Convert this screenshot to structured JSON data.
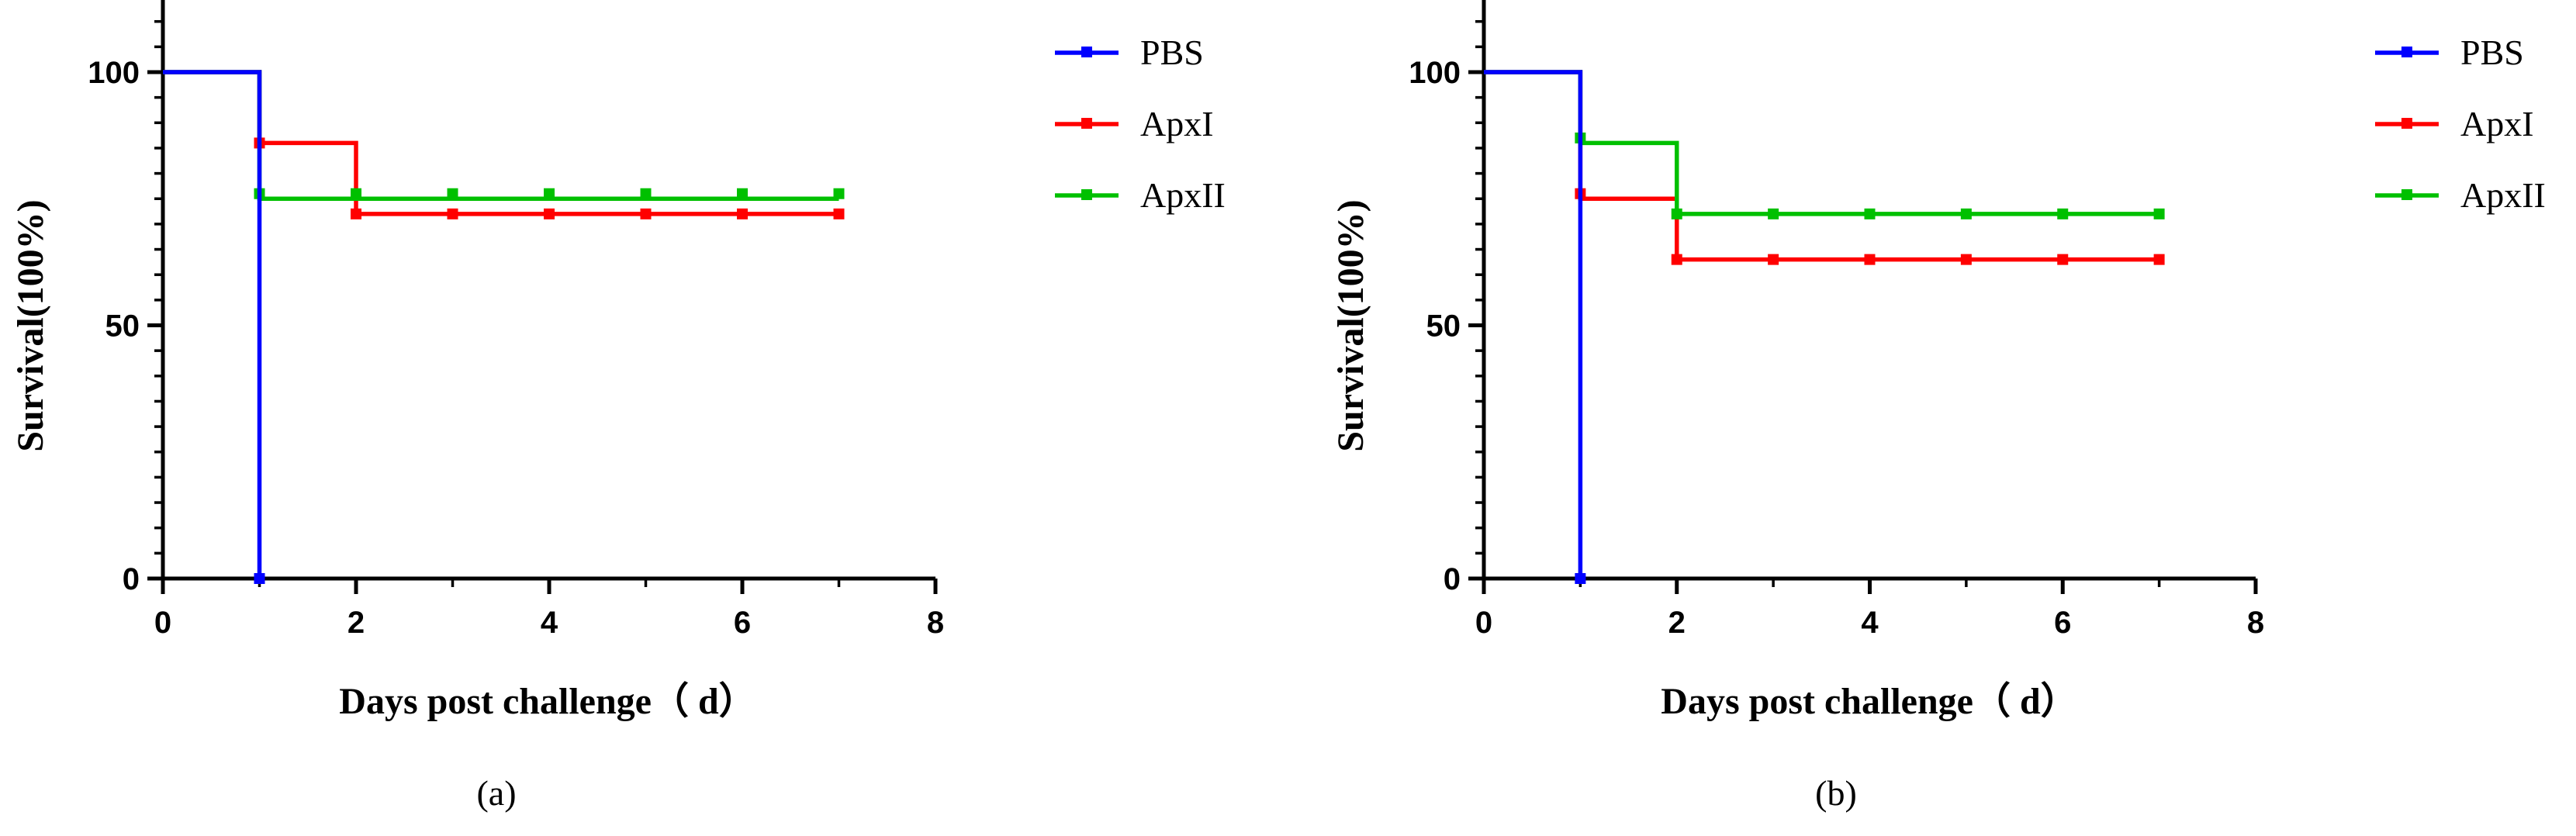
{
  "figure": {
    "panel_labels": [
      "(a)",
      "(b)"
    ]
  },
  "chart_data": [
    {
      "type": "line",
      "subtype": "kaplan-meier survival step",
      "panel": "(a)",
      "title": "",
      "xlabel": "Days post challenge（ d）",
      "ylabel": "Survival(100%)",
      "xlim": [
        0,
        8
      ],
      "ylim": [
        0,
        110
      ],
      "xticks": [
        "0",
        "2",
        "4",
        "6",
        "8"
      ],
      "yticks": [
        "0",
        "50",
        "100"
      ],
      "grid": false,
      "legend_position": "right",
      "series": [
        {
          "name": "PBS",
          "color": "#0000ff",
          "steps": [
            [
              0,
              100
            ],
            [
              1,
              0
            ]
          ],
          "censor": [
            [
              1,
              0
            ]
          ]
        },
        {
          "name": "ApxI",
          "color": "#ff0000",
          "steps": [
            [
              0,
              100
            ],
            [
              1,
              86
            ],
            [
              2,
              72
            ],
            [
              7,
              72
            ]
          ],
          "censor": [
            [
              1,
              86
            ],
            [
              2,
              72
            ],
            [
              3,
              72
            ],
            [
              4,
              72
            ],
            [
              5,
              72
            ],
            [
              6,
              72
            ],
            [
              7,
              72
            ]
          ]
        },
        {
          "name": "ApxII",
          "color": "#00c000",
          "steps": [
            [
              0,
              100
            ],
            [
              1,
              75
            ],
            [
              7,
              75
            ]
          ],
          "censor": [
            [
              1,
              76
            ],
            [
              2,
              76
            ],
            [
              3,
              76
            ],
            [
              4,
              76
            ],
            [
              5,
              76
            ],
            [
              6,
              76
            ],
            [
              7,
              76
            ]
          ]
        }
      ]
    },
    {
      "type": "line",
      "subtype": "kaplan-meier survival step",
      "panel": "(b)",
      "title": "",
      "xlabel": "Days post challenge（ d）",
      "ylabel": "Survival(100%)",
      "xlim": [
        0,
        8
      ],
      "ylim": [
        0,
        110
      ],
      "xticks": [
        "0",
        "2",
        "4",
        "6",
        "8"
      ],
      "yticks": [
        "0",
        "50",
        "100"
      ],
      "grid": false,
      "legend_position": "right",
      "series": [
        {
          "name": "PBS",
          "color": "#0000ff",
          "steps": [
            [
              0,
              100
            ],
            [
              1,
              0
            ]
          ],
          "censor": [
            [
              1,
              0
            ]
          ]
        },
        {
          "name": "ApxI",
          "color": "#ff0000",
          "steps": [
            [
              0,
              100
            ],
            [
              1,
              75
            ],
            [
              2,
              63
            ],
            [
              7,
              63
            ]
          ],
          "censor": [
            [
              1,
              76
            ],
            [
              2,
              63
            ],
            [
              3,
              63
            ],
            [
              4,
              63
            ],
            [
              5,
              63
            ],
            [
              6,
              63
            ],
            [
              7,
              63
            ]
          ]
        },
        {
          "name": "ApxII",
          "color": "#00c000",
          "steps": [
            [
              0,
              100
            ],
            [
              1,
              86
            ],
            [
              2,
              72
            ],
            [
              7,
              72
            ]
          ],
          "censor": [
            [
              1,
              87
            ],
            [
              2,
              72
            ],
            [
              3,
              72
            ],
            [
              4,
              72
            ],
            [
              5,
              72
            ],
            [
              6,
              72
            ],
            [
              7,
              72
            ]
          ]
        }
      ]
    }
  ]
}
